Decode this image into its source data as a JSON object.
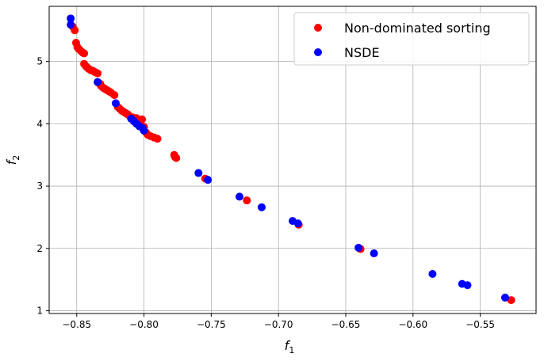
{
  "chart_data": {
    "type": "scatter",
    "xlabel": "f",
    "xlabel_sub": "1",
    "ylabel": "f",
    "ylabel_sub": "2",
    "xlim": [
      -0.8705,
      -0.5085
    ],
    "ylim": [
      0.955,
      5.885
    ],
    "xticks": [
      -0.85,
      -0.8,
      -0.75,
      -0.7,
      -0.65,
      -0.6,
      -0.55
    ],
    "xtick_labels": [
      "−0.85",
      "−0.80",
      "−0.75",
      "−0.70",
      "−0.65",
      "−0.60",
      "−0.55"
    ],
    "yticks": [
      1,
      2,
      3,
      4,
      5
    ],
    "ytick_labels": [
      "1",
      "2",
      "3",
      "4",
      "5"
    ],
    "grid": true,
    "legend_position": "top-right",
    "series": [
      {
        "name": "Non-dominated sorting",
        "color": "#ff0000",
        "points": [
          [
            -0.853,
            5.56
          ],
          [
            -0.8515,
            5.5
          ],
          [
            -0.8505,
            5.3
          ],
          [
            -0.8495,
            5.23
          ],
          [
            -0.8485,
            5.2
          ],
          [
            -0.847,
            5.17
          ],
          [
            -0.8455,
            5.14
          ],
          [
            -0.8445,
            5.13
          ],
          [
            -0.8445,
            4.96
          ],
          [
            -0.843,
            4.92
          ],
          [
            -0.842,
            4.9
          ],
          [
            -0.841,
            4.88
          ],
          [
            -0.8395,
            4.86
          ],
          [
            -0.838,
            4.85
          ],
          [
            -0.8365,
            4.83
          ],
          [
            -0.8345,
            4.81
          ],
          [
            -0.834,
            4.66
          ],
          [
            -0.8325,
            4.64
          ],
          [
            -0.832,
            4.61
          ],
          [
            -0.8305,
            4.58
          ],
          [
            -0.829,
            4.56
          ],
          [
            -0.8275,
            4.54
          ],
          [
            -0.826,
            4.52
          ],
          [
            -0.8245,
            4.5
          ],
          [
            -0.822,
            4.46
          ],
          [
            -0.8195,
            4.27
          ],
          [
            -0.818,
            4.24
          ],
          [
            -0.8165,
            4.21
          ],
          [
            -0.815,
            4.19
          ],
          [
            -0.8135,
            4.17
          ],
          [
            -0.812,
            4.15
          ],
          [
            -0.8105,
            4.12
          ],
          [
            -0.808,
            4.1
          ],
          [
            -0.8055,
            4.09
          ],
          [
            -0.8015,
            4.07
          ],
          [
            -0.8,
            3.95
          ],
          [
            -0.7985,
            3.86
          ],
          [
            -0.797,
            3.82
          ],
          [
            -0.795,
            3.8
          ],
          [
            -0.7925,
            3.78
          ],
          [
            -0.79,
            3.76
          ],
          [
            -0.7775,
            3.5
          ],
          [
            -0.777,
            3.47
          ],
          [
            -0.776,
            3.45
          ],
          [
            -0.7545,
            3.12
          ],
          [
            -0.7235,
            2.77
          ],
          [
            -0.685,
            2.38
          ],
          [
            -0.639,
            1.99
          ],
          [
            -0.527,
            1.17
          ]
        ]
      },
      {
        "name": "NSDE",
        "color": "#0000ff",
        "points": [
          [
            -0.8545,
            5.69
          ],
          [
            -0.8545,
            5.59
          ],
          [
            -0.8345,
            4.67
          ],
          [
            -0.821,
            4.33
          ],
          [
            -0.8095,
            4.08
          ],
          [
            -0.8075,
            4.04
          ],
          [
            -0.8055,
            4.0
          ],
          [
            -0.8035,
            3.96
          ],
          [
            -0.801,
            3.93
          ],
          [
            -0.8,
            3.89
          ],
          [
            -0.7595,
            3.21
          ],
          [
            -0.7525,
            3.1
          ],
          [
            -0.729,
            2.83
          ],
          [
            -0.7125,
            2.66
          ],
          [
            -0.6895,
            2.44
          ],
          [
            -0.6855,
            2.4
          ],
          [
            -0.6405,
            2.01
          ],
          [
            -0.629,
            1.92
          ],
          [
            -0.5855,
            1.59
          ],
          [
            -0.5635,
            1.43
          ],
          [
            -0.5595,
            1.41
          ],
          [
            -0.5315,
            1.21
          ]
        ]
      }
    ]
  }
}
